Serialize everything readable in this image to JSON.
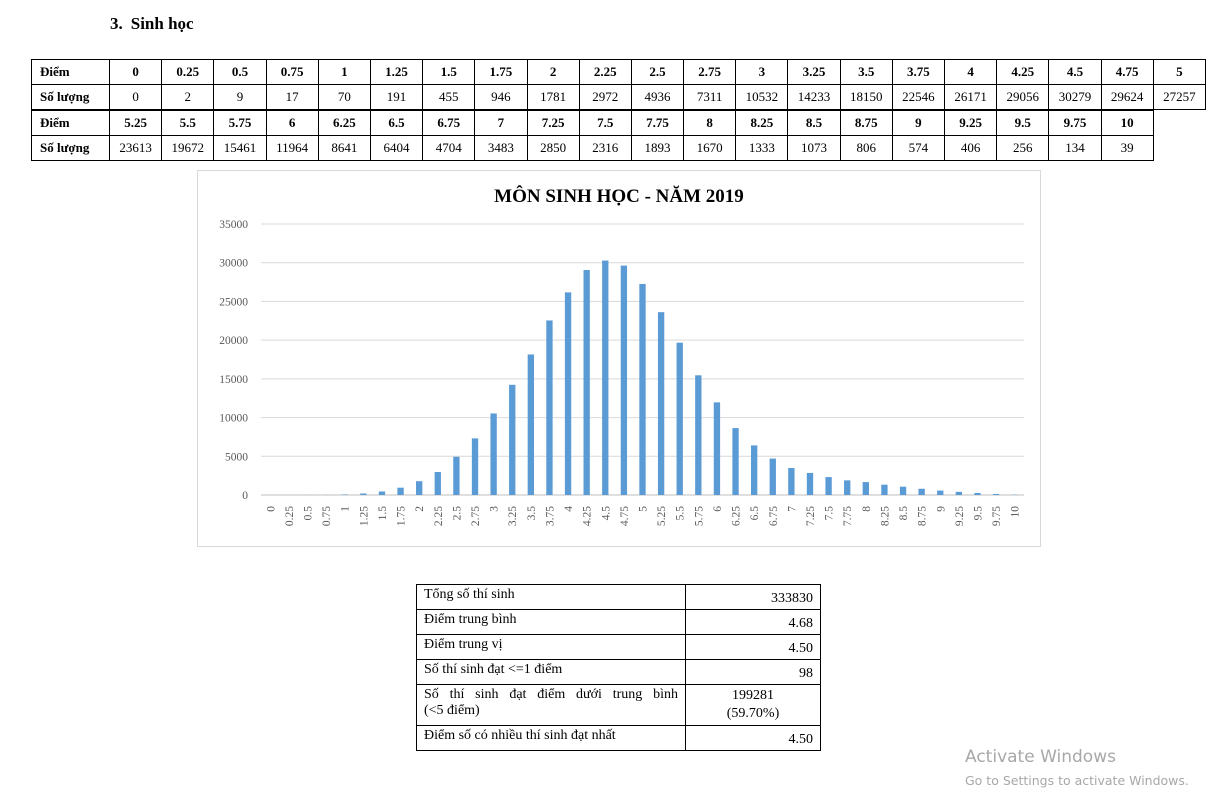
{
  "heading": {
    "number": "3.",
    "title": "Sinh học"
  },
  "distribution_table": {
    "row_label_score": "Điểm",
    "row_label_count": "Số lượng",
    "part1": {
      "scores": [
        "0",
        "0.25",
        "0.5",
        "0.75",
        "1",
        "1.25",
        "1.5",
        "1.75",
        "2",
        "2.25",
        "2.5",
        "2.75",
        "3",
        "3.25",
        "3.5",
        "3.75",
        "4",
        "4.25",
        "4.5",
        "4.75",
        "5"
      ],
      "counts": [
        "0",
        "2",
        "9",
        "17",
        "70",
        "191",
        "455",
        "946",
        "1781",
        "2972",
        "4936",
        "7311",
        "10532",
        "14233",
        "18150",
        "22546",
        "26171",
        "29056",
        "30279",
        "29624",
        "27257"
      ]
    },
    "part2": {
      "scores": [
        "5.25",
        "5.5",
        "5.75",
        "6",
        "6.25",
        "6.5",
        "6.75",
        "7",
        "7.25",
        "7.5",
        "7.75",
        "8",
        "8.25",
        "8.5",
        "8.75",
        "9",
        "9.25",
        "9.5",
        "9.75",
        "10"
      ],
      "counts": [
        "23613",
        "19672",
        "15461",
        "11964",
        "8641",
        "6404",
        "4704",
        "3483",
        "2850",
        "2316",
        "1893",
        "1670",
        "1333",
        "1073",
        "806",
        "574",
        "406",
        "256",
        "134",
        "39"
      ]
    }
  },
  "chart_data": {
    "type": "bar",
    "title": "MÔN SINH HỌC - NĂM 2019",
    "xlabel": "",
    "ylabel": "",
    "ylim": [
      0,
      35000
    ],
    "yticks": [
      0,
      5000,
      10000,
      15000,
      20000,
      25000,
      30000,
      35000
    ],
    "ytick_labels": [
      "0",
      "5000",
      "10000",
      "15000",
      "20000",
      "25000",
      "30000",
      "35000"
    ],
    "grid": true,
    "bar_color": "#5b9bd5",
    "categories": [
      "0",
      "0.25",
      "0.5",
      "0.75",
      "1",
      "1.25",
      "1.5",
      "1.75",
      "2",
      "2.25",
      "2.5",
      "2.75",
      "3",
      "3.25",
      "3.5",
      "3.75",
      "4",
      "4.25",
      "4.5",
      "4.75",
      "5",
      "5.25",
      "5.5",
      "5.75",
      "6",
      "6.25",
      "6.5",
      "6.75",
      "7",
      "7.25",
      "7.5",
      "7.75",
      "8",
      "8.25",
      "8.5",
      "8.75",
      "9",
      "9.25",
      "9.5",
      "9.75",
      "10"
    ],
    "values": [
      0,
      2,
      9,
      17,
      70,
      191,
      455,
      946,
      1781,
      2972,
      4936,
      7311,
      10532,
      14233,
      18150,
      22546,
      26171,
      29056,
      30279,
      29624,
      27257,
      23613,
      19672,
      15461,
      11964,
      8641,
      6404,
      4704,
      3483,
      2850,
      2316,
      1893,
      1670,
      1333,
      1073,
      806,
      574,
      406,
      256,
      134,
      39
    ]
  },
  "stats": {
    "total_label": "Tổng số thí sinh",
    "total_value": "333830",
    "mean_label": "Điểm trung bình",
    "mean_value": "4.68",
    "median_label": "Điểm trung vị",
    "median_value": "4.50",
    "le1_label": "Số thí sinh đạt <=1 điểm",
    "le1_value": "98",
    "below_avg_label_1": "Số thí sinh đạt điểm dưới trung bình",
    "below_avg_label_2": "(<5 điểm)",
    "below_avg_value": "199281",
    "below_avg_percent": "(59.70%)",
    "mode_label": "Điểm số có nhiều thí sinh đạt nhất",
    "mode_value": "4.50"
  },
  "watermark": {
    "line1": "Activate Windows",
    "line2": "Go to Settings to activate Windows."
  }
}
